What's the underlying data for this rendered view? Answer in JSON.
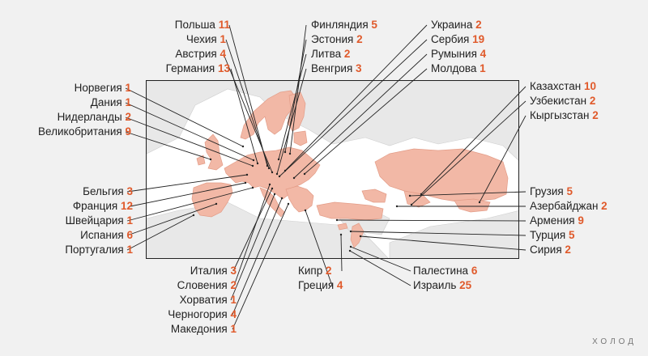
{
  "map": {
    "land_color": "#f2b8a6",
    "other_land_color": "#e8e8e8",
    "sea_color": "#ffffff",
    "accent": "#e05a2b"
  },
  "labels": [
    {
      "id": "poland",
      "name": "Польша",
      "count": "11"
    },
    {
      "id": "czechia",
      "name": "Чехия",
      "count": "1"
    },
    {
      "id": "austria",
      "name": "Австрия",
      "count": "4"
    },
    {
      "id": "germany",
      "name": "Германия",
      "count": "13"
    },
    {
      "id": "finland",
      "name": "Финляндия",
      "count": "5"
    },
    {
      "id": "estonia",
      "name": "Эстония",
      "count": "2"
    },
    {
      "id": "lithuania",
      "name": "Литва",
      "count": "2"
    },
    {
      "id": "hungary",
      "name": "Венгрия",
      "count": "3"
    },
    {
      "id": "ukraine",
      "name": "Украина",
      "count": "2"
    },
    {
      "id": "serbia",
      "name": "Сербия",
      "count": "19"
    },
    {
      "id": "romania",
      "name": "Румыния",
      "count": "4"
    },
    {
      "id": "moldova",
      "name": "Молдова",
      "count": "1"
    },
    {
      "id": "norway",
      "name": "Норвегия",
      "count": "1"
    },
    {
      "id": "denmark",
      "name": "Дания",
      "count": "1"
    },
    {
      "id": "netherlands",
      "name": "Нидерланды",
      "count": "2"
    },
    {
      "id": "uk",
      "name": "Великобритания",
      "count": "9"
    },
    {
      "id": "belgium",
      "name": "Бельгия",
      "count": "3"
    },
    {
      "id": "france",
      "name": "Франция",
      "count": "12"
    },
    {
      "id": "switzerland",
      "name": "Швейцария",
      "count": "1"
    },
    {
      "id": "spain",
      "name": "Испания",
      "count": "6"
    },
    {
      "id": "portugal",
      "name": "Португалия",
      "count": "1"
    },
    {
      "id": "kazakhstan",
      "name": "Казахстан",
      "count": "10"
    },
    {
      "id": "uzbekistan",
      "name": "Узбекистан",
      "count": "2"
    },
    {
      "id": "kyrgyzstan",
      "name": "Кыргызстан",
      "count": "2"
    },
    {
      "id": "georgia",
      "name": "Грузия",
      "count": "5"
    },
    {
      "id": "azerbaijan",
      "name": "Азербайджан",
      "count": "2"
    },
    {
      "id": "armenia",
      "name": "Армения",
      "count": "9"
    },
    {
      "id": "turkey",
      "name": "Турция",
      "count": "5"
    },
    {
      "id": "syria",
      "name": "Сирия",
      "count": "2"
    },
    {
      "id": "italy",
      "name": "Италия",
      "count": "3"
    },
    {
      "id": "slovenia",
      "name": "Словения",
      "count": "2"
    },
    {
      "id": "croatia",
      "name": "Хорватия",
      "count": "1"
    },
    {
      "id": "montenegro",
      "name": "Черногория",
      "count": "4"
    },
    {
      "id": "macedonia",
      "name": "Македония",
      "count": "1"
    },
    {
      "id": "cyprus",
      "name": "Кипр",
      "count": "2"
    },
    {
      "id": "greece",
      "name": "Греция",
      "count": "4"
    },
    {
      "id": "palestine",
      "name": "Палестина",
      "count": "6"
    },
    {
      "id": "israel",
      "name": "Израиль",
      "count": "25"
    }
  ],
  "brand": "ХОЛОД"
}
